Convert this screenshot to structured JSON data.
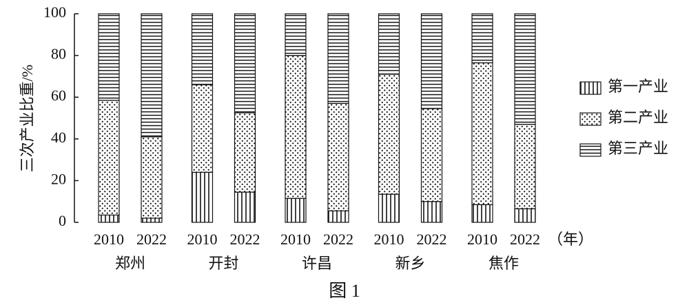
{
  "chart_data": {
    "type": "stacked-bar",
    "y_label": "三次产业比重/%",
    "caption": "图 1",
    "x_unit": "（年）",
    "categories": [
      "2010",
      "2022",
      "2010",
      "2022",
      "2010",
      "2022",
      "2010",
      "2022",
      "2010",
      "2022"
    ],
    "groups": [
      "郑州",
      "开封",
      "许昌",
      "新乡",
      "焦作"
    ],
    "series": [
      {
        "name": "第一产业",
        "color": "#111111",
        "pattern": "vertical",
        "values": [
          3.5,
          2,
          24,
          14.5,
          11.5,
          5.5,
          13.5,
          10,
          8.5,
          6.5
        ]
      },
      {
        "name": "第二产业",
        "color": "#111111",
        "pattern": "dots",
        "values": [
          55,
          39,
          42,
          38,
          68.5,
          51.5,
          57.5,
          44.5,
          68,
          40.5
        ]
      },
      {
        "name": "第三产业",
        "color": "#111111",
        "pattern": "horizontal",
        "values": [
          41.5,
          59,
          34,
          47.5,
          20,
          43,
          29,
          45.5,
          23.5,
          53
        ]
      }
    ],
    "ylim": [
      0,
      100
    ],
    "yticks": [
      0,
      20,
      40,
      60,
      80,
      100
    ],
    "grid": false,
    "legend": "right"
  }
}
